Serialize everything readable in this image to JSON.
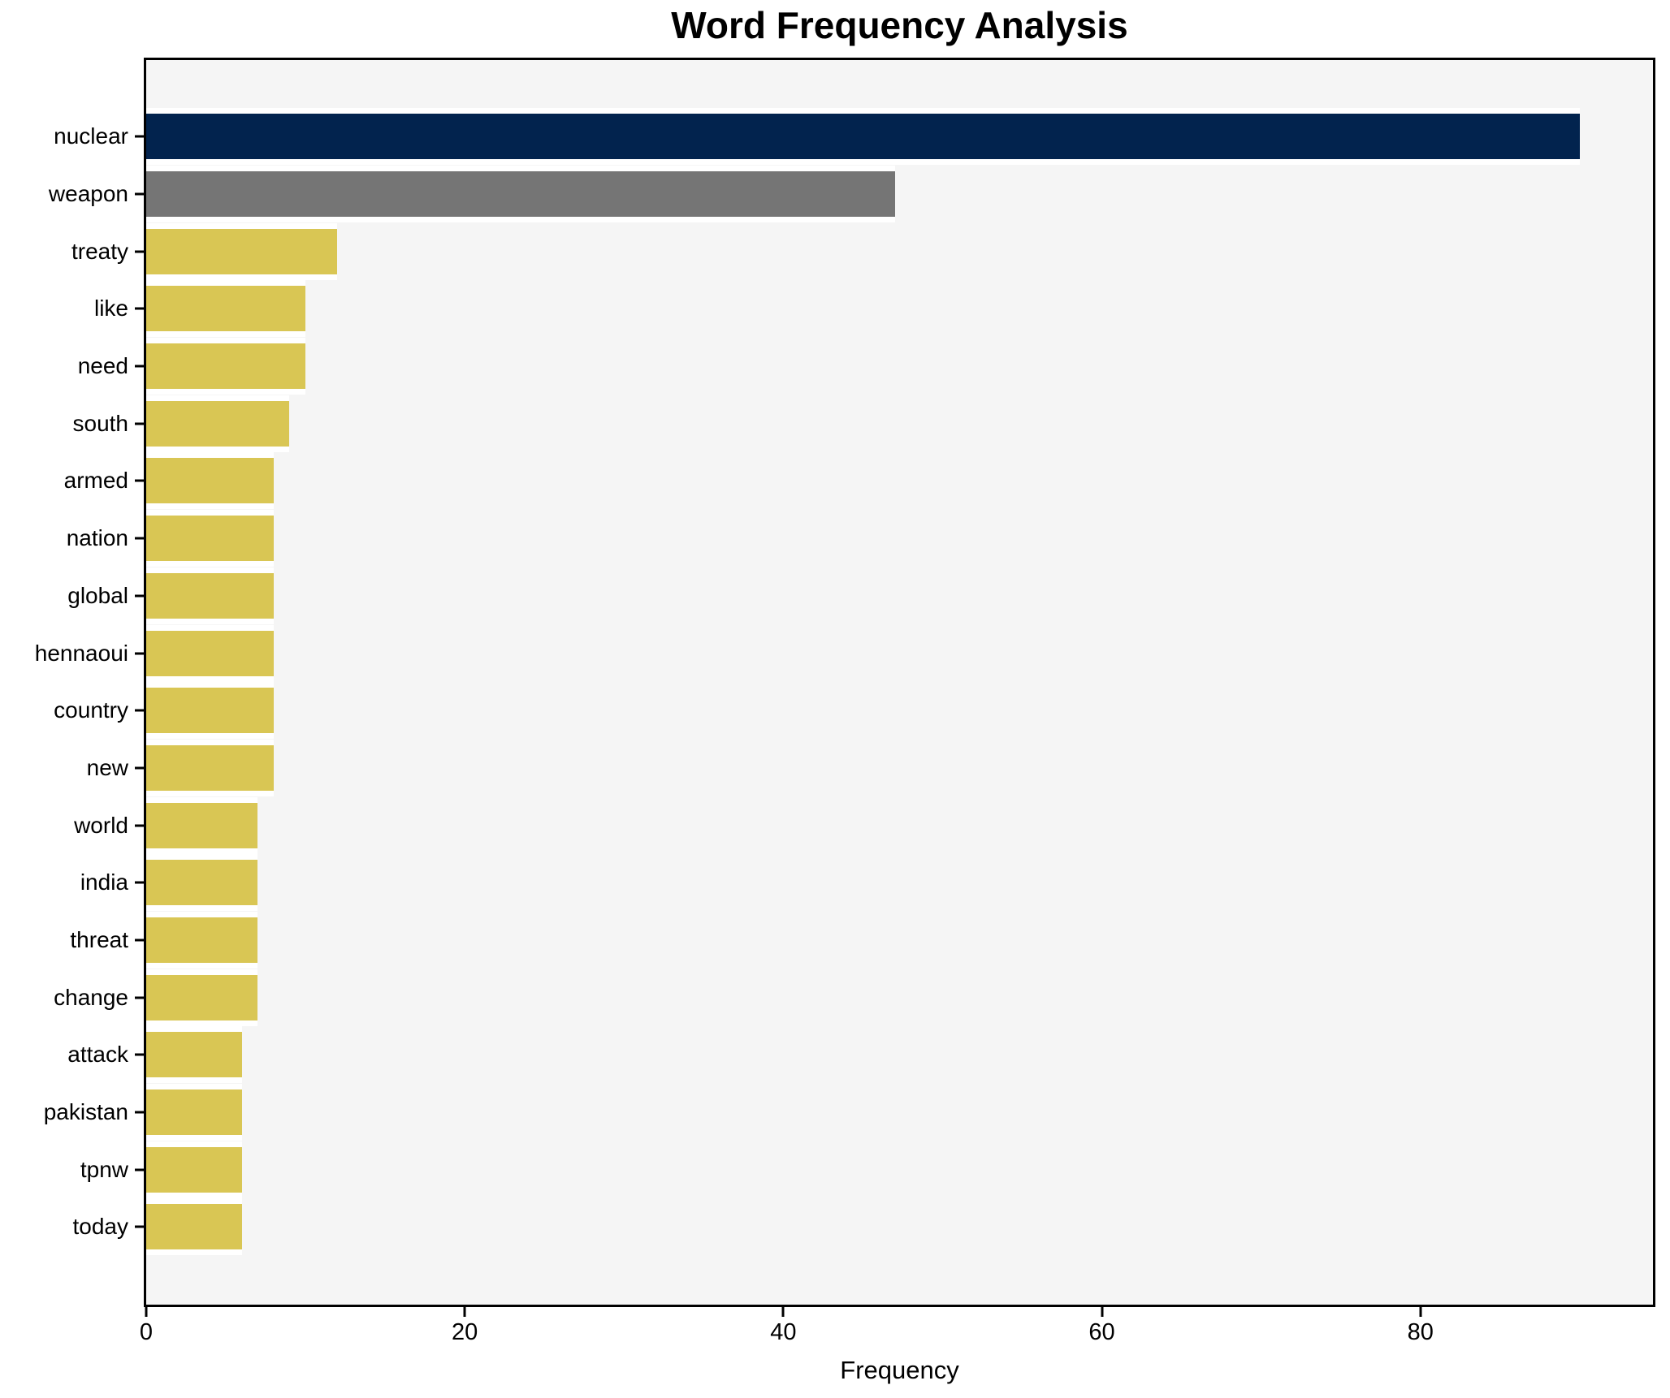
{
  "chart_data": {
    "type": "bar",
    "orientation": "horizontal",
    "title": "Word Frequency Analysis",
    "xlabel": "Frequency",
    "ylabel": "",
    "grid": false,
    "legend": false,
    "xlim": [
      0,
      94.6
    ],
    "xticks": [
      0,
      20,
      40,
      60,
      80
    ],
    "categories": [
      "nuclear",
      "weapon",
      "treaty",
      "like",
      "need",
      "south",
      "armed",
      "nation",
      "global",
      "hennaoui",
      "country",
      "new",
      "world",
      "india",
      "threat",
      "change",
      "attack",
      "pakistan",
      "tpnw",
      "today"
    ],
    "values": [
      90,
      47,
      12,
      10,
      10,
      9,
      8,
      8,
      8,
      8,
      8,
      8,
      7,
      7,
      7,
      7,
      6,
      6,
      6,
      6
    ],
    "bar_colors": [
      "#02234e",
      "#757575",
      "#d9c654",
      "#d9c654",
      "#d9c654",
      "#d9c654",
      "#d9c654",
      "#d9c654",
      "#d9c654",
      "#d9c654",
      "#d9c654",
      "#d9c654",
      "#d9c654",
      "#d9c654",
      "#d9c654",
      "#d9c654",
      "#d9c654",
      "#d9c654",
      "#d9c654",
      "#d9c654"
    ],
    "colors": {
      "highlight_bar": "#02234e",
      "secondary_bar": "#757575",
      "default_bar": "#d9c654",
      "bar_edge": "#ffffff",
      "plot_background": "#f5f5f5",
      "figure_background": "#ffffff",
      "axis": "#000000",
      "text": "#000000"
    }
  }
}
